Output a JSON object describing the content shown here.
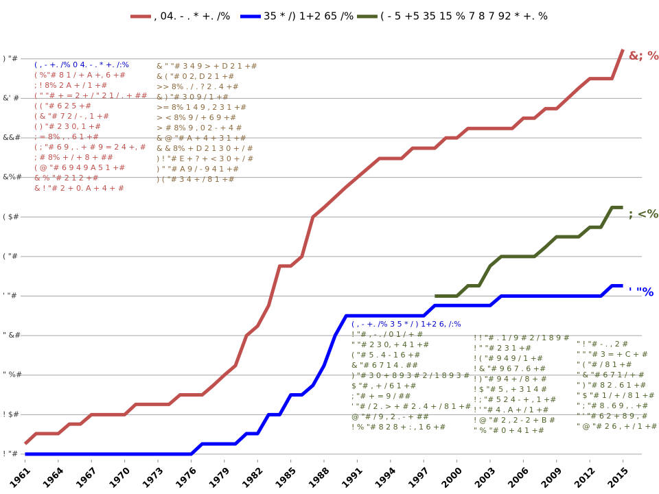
{
  "chart_data": {
    "type": "line",
    "legend": [
      ", 04. - . * +. /%",
      "35 * /) 1+2 65 /%",
      "( - 5 +5 35 15 % 7 8 7 92 * +. %"
    ],
    "x": [
      1961,
      1962,
      1963,
      1964,
      1965,
      1966,
      1967,
      1968,
      1969,
      1970,
      1971,
      1972,
      1973,
      1974,
      1975,
      1976,
      1977,
      1978,
      1979,
      1980,
      1981,
      1982,
      1983,
      1984,
      1985,
      1986,
      1987,
      1988,
      1989,
      1990,
      1991,
      1992,
      1993,
      1994,
      1995,
      1996,
      1997,
      1998,
      1999,
      2000,
      2001,
      2002,
      2003,
      2004,
      2005,
      2006,
      2007,
      2008,
      2009,
      2010,
      2011,
      2012,
      2013,
      2014,
      2015
    ],
    "series": [
      {
        "name": ", 04. - . * +. /%",
        "color": "#c0504d",
        "end_label": "&; %",
        "values": [
          13,
          26,
          26,
          26,
          38,
          38,
          50,
          50,
          50,
          50,
          63,
          63,
          63,
          63,
          75,
          75,
          75,
          87,
          100,
          112,
          150,
          162,
          188,
          238,
          238,
          250,
          300,
          312,
          325,
          338,
          350,
          362,
          374,
          374,
          374,
          387,
          387,
          387,
          400,
          400,
          412,
          412,
          412,
          412,
          412,
          425,
          425,
          437,
          437,
          450,
          463,
          475,
          475,
          475,
          512
        ]
      },
      {
        "name": "35 * /) 1+2 65 /%",
        "color": "#0000ff",
        "end_label": "' \"%",
        "values": [
          0,
          0,
          0,
          0,
          0,
          0,
          0,
          0,
          0,
          0,
          0,
          0,
          0,
          0,
          0,
          0,
          13,
          13,
          13,
          13,
          26,
          26,
          50,
          50,
          75,
          75,
          87,
          112,
          150,
          175,
          175,
          175,
          175,
          175,
          175,
          175,
          175,
          188,
          188,
          188,
          188,
          188,
          188,
          200,
          200,
          200,
          200,
          200,
          200,
          200,
          200,
          200,
          200,
          213,
          213
        ]
      },
      {
        "name": "( - 5 +5 35 15 % 7 8 7 92 * +. %",
        "color": "#4f6228",
        "end_label": "; <%",
        "values": [
          null,
          null,
          null,
          null,
          null,
          null,
          null,
          null,
          null,
          null,
          null,
          null,
          null,
          null,
          null,
          null,
          null,
          null,
          null,
          null,
          null,
          null,
          null,
          null,
          null,
          null,
          null,
          null,
          null,
          null,
          null,
          null,
          null,
          null,
          null,
          null,
          null,
          200,
          200,
          200,
          213,
          213,
          238,
          250,
          250,
          250,
          250,
          262,
          275,
          275,
          275,
          287,
          287,
          312,
          312
        ]
      }
    ],
    "xlim": [
      1960.6,
      2016.7
    ],
    "xticks": [
      1961,
      1964,
      1967,
      1970,
      1973,
      1976,
      1979,
      1982,
      1985,
      1988,
      1991,
      1994,
      1997,
      2000,
      2003,
      2006,
      2009,
      2012,
      2015
    ],
    "ylim": [
      -7,
      525
    ],
    "yticks": [
      {
        "value": 0,
        "label": "! \"#"
      },
      {
        "value": 50,
        "label": "! $#"
      },
      {
        "value": 100,
        "label": "\" %#"
      },
      {
        "value": 150,
        "label": "\" &#"
      },
      {
        "value": 200,
        "label": "' \"#"
      },
      {
        "value": 250,
        "label": "( \"#"
      },
      {
        "value": 300,
        "label": "( $#"
      },
      {
        "value": 350,
        "label": "&%#"
      },
      {
        "value": 400,
        "label": "&&#"
      },
      {
        "value": 450,
        "label": "&' #"
      },
      {
        "value": 500,
        "label": ") \"#"
      }
    ],
    "grid": true,
    "annotations": [
      {
        "title": "( , - +. /% 0 4. - . * +. /:%",
        "color": "#c0504d",
        "lines": [
          "( %\"# 8 1 / + A +, 6 +#",
          "; ! 8% 2 A + / 1 +#",
          "( \" \"# + = 2 + / \" 2 1 / . + ##",
          "( ( \"# 6 2 5 +#",
          "( & \"# 7 2 / - , 1 +#",
          "( ) \"# 2 3 0, 1 +#",
          "; = 8% , . 6 1 +#",
          "( ; \"# 6 9 , . + # 9 = 2 4 +, #",
          "; # 8% + / + 8 + ##",
          "( @ \"# 6 9 4 9 A 5 1 +#",
          "& % \"# 2 1 2 +#",
          "& ! \"# 2 + 0. A + 4 + #"
        ]
      },
      {
        "title": "& \" \"# 3 4 9 > + D 2 1 +#",
        "color": "#8c6a3e",
        "lines": [
          "& ( \"# 0 2, D 2 1 +#",
          ">> 8% . / . ? 2 . 4 +#",
          "& ) \"# 3 0 9 / 1 +#",
          ">= 8% 1 4 9 , 2 3 1 +#",
          "> < 8% 9 / + 6 9 +#",
          "> # 8% 9 , 0 2 - + 4 #",
          "& @ \"# A + 4 + 3 1 +#",
          "& & 8% + D 2 1 3 0 + / #",
          ") ! \"# E + ? + < 3 0 + / #",
          ") \" \"# A 9 / - 9 4 1 +#",
          ") ( \"# 3 4 + / 8 1 +#"
        ]
      },
      {
        "title": "( , - +. /% 3 5 * / ) 1+2 6, /:%",
        "color": "#4f6228",
        "lines": [
          "! \"# , - . / 0 1 / + #",
          "\" \"# 2 3 0, + 4 1 +#",
          "( \"# 5 . 4 - 1 6 +#",
          "& \"# 6 7 1 4 . ##",
          ") \"# 3 0 + 8 9 3 # 2 / 1 8 9 3 #",
          "$ \"# , + / 6 1 +#",
          "; \"# + = 9 / ##",
          "' \"# / 2 . > + # 2 . 4 + / 8 1 +#",
          "@ \"# / 9 , 2 . - + ##",
          "! % \"# 8 2 8 + : , 1 6 +#"
        ]
      },
      {
        "title": "! ! \"# . 1 / 9 # 2 / 1 8 9 #",
        "color": "#4f6228",
        "lines": [
          "! \" \"# 2 3 1 +#",
          "! ( \"# 9 4 9 / 1 +#",
          "! & \"# 9 6 7 . 6 +#",
          "! ) \"# 9 4 + / 8 + #",
          "! $ \"# 5 , + 3 1 4 #",
          "! ; \"# 5 2 4 - + , 1 +#",
          "! ' \"# 4 . A + / 1 +#",
          "! @ \"# 2 , 2 - 2 + B #",
          "\" % \"# 0 + 4 1 +#"
        ]
      },
      {
        "title": "\" ! \"# - . , 2 #",
        "color": "#4f6228",
        "lines": [
          "\" \" \"# 3 = + C + #",
          "\" ( \"# / 8 1 +#",
          "\" & \"# 6 7 1 / + #",
          "\" ) \"# 8 2 . 6 1 +#",
          "\" $ \"# 1 / + / 8 1 +#",
          "\" ; \"# 8 . 6 9 , . +#",
          "\" ' \"# 6 2 + 8 9 , #",
          "\" @ \"# 2 6 , + / 1 +#"
        ]
      }
    ]
  }
}
